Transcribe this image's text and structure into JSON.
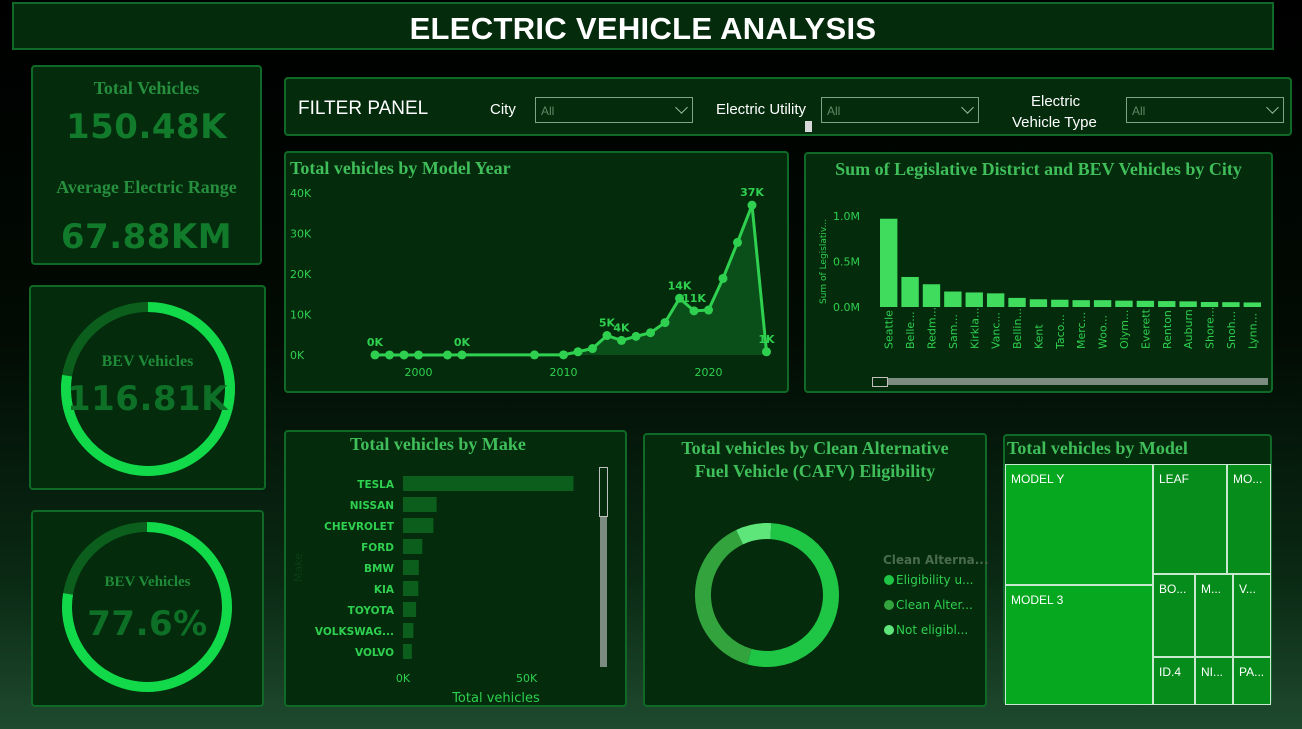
{
  "header": {
    "title": "ELECTRIC VEHICLE ANALYSIS"
  },
  "kpis": {
    "total_vehicles_label": "Total Vehicles",
    "total_vehicles_value": "150.48K",
    "avg_range_label": "Average Electric Range",
    "avg_range_value": "67.88KM",
    "bev_count_label": "BEV Vehicles",
    "bev_count_value": "116.81K",
    "bev_pct_label": "BEV Vehicles",
    "bev_pct_value": "77.6%",
    "bev_pct_fraction": 0.776,
    "bev_count_fraction": 0.776
  },
  "filters": {
    "title": "FILTER PANEL",
    "city_label": "City",
    "city_value": "All",
    "utility_label": "Electric Utility",
    "utility_value": "All",
    "type_label_1": "Electric",
    "type_label_2": "Vehicle Type",
    "type_value": "All"
  },
  "colors": {
    "accent": "#2fd04f",
    "panel_bg": "#032b0c",
    "panel_border": "#0e6a26",
    "bar_dark": "#0b5e1b",
    "treemap": "#06a81f"
  },
  "chart_data": [
    {
      "id": "model_year",
      "type": "area",
      "title": "Total vehicles by Model Year",
      "x": [
        1997,
        1998,
        1999,
        2000,
        2002,
        2003,
        2008,
        2010,
        2011,
        2012,
        2013,
        2014,
        2015,
        2016,
        2017,
        2018,
        2019,
        2020,
        2021,
        2022,
        2023,
        2024
      ],
      "values": [
        20,
        10,
        10,
        10,
        10,
        30,
        20,
        40,
        800,
        1600,
        4800,
        3600,
        4600,
        5500,
        8000,
        14000,
        10900,
        11100,
        18900,
        27800,
        37000,
        800
      ],
      "labels": [
        {
          "x": 1997,
          "text": "0K"
        },
        {
          "x": 2003,
          "text": "0K"
        },
        {
          "x": 2013,
          "text": "5K"
        },
        {
          "x": 2014,
          "text": "4K"
        },
        {
          "x": 2018,
          "text": "14K"
        },
        {
          "x": 2019,
          "text": "11K"
        },
        {
          "x": 2023,
          "text": "37K"
        },
        {
          "x": 2024,
          "text": "1K"
        }
      ],
      "x_ticks": [
        "2000",
        "2010",
        "2020"
      ],
      "y_ticks": [
        "0K",
        "10K",
        "20K",
        "30K",
        "40K"
      ],
      "ylim": [
        0,
        40000
      ],
      "xlim": [
        1995,
        2025
      ]
    },
    {
      "id": "legislative",
      "type": "bar",
      "title": "Sum of Legislative District and BEV Vehicles by City",
      "ylabel": "Sum of Legislativ...",
      "categories": [
        "Seattle",
        "Belle...",
        "Redm...",
        "Sam...",
        "Kirkla...",
        "Vanc...",
        "Bellin...",
        "Kent",
        "Taco...",
        "Merc...",
        "Woo...",
        "Olym...",
        "Everett",
        "Renton",
        "Auburn",
        "Shore...",
        "Snoh...",
        "Lynn..."
      ],
      "values": [
        0.97,
        0.33,
        0.25,
        0.17,
        0.16,
        0.15,
        0.1,
        0.085,
        0.08,
        0.075,
        0.075,
        0.07,
        0.068,
        0.065,
        0.062,
        0.055,
        0.053,
        0.05
      ],
      "y_ticks": [
        "0.0M",
        "0.5M",
        "1.0M"
      ],
      "ylim": [
        0,
        1.0
      ]
    },
    {
      "id": "make",
      "type": "bar",
      "title": "Total vehicles by Make",
      "ylabel": "Make",
      "xlabel": "Total vehicles",
      "categories": [
        "TESLA",
        "NISSAN",
        "CHEVROLET",
        "FORD",
        "BMW",
        "KIA",
        "TOYOTA",
        "VOLKSWAG...",
        "VOLVO"
      ],
      "values": [
        69000,
        13600,
        12300,
        7800,
        6400,
        6200,
        5300,
        4200,
        3600
      ],
      "x_ticks": [
        "0K",
        "50K"
      ],
      "xlim": [
        0,
        70000
      ]
    },
    {
      "id": "cafv",
      "type": "pie",
      "title_1": "Total vehicles by Clean Alternative",
      "title_2": "Fuel Vehicle (CAFV) Eligibility",
      "legend_title": "Clean Alterna...",
      "categories": [
        "Eligibility u...",
        "Clean Alter...",
        "Not eligibl..."
      ],
      "values": [
        53.5,
        38.5,
        8.0
      ],
      "colors": [
        "#1fc544",
        "#32a33d",
        "#5ee67a"
      ]
    },
    {
      "id": "model",
      "type": "treemap",
      "title": "Total vehicles by Model",
      "categories": [
        "MODEL Y",
        "MODEL 3",
        "LEAF",
        "MO...",
        "BO...",
        "M...",
        "V...",
        "ID.4",
        "NI...",
        "PA..."
      ]
    }
  ]
}
